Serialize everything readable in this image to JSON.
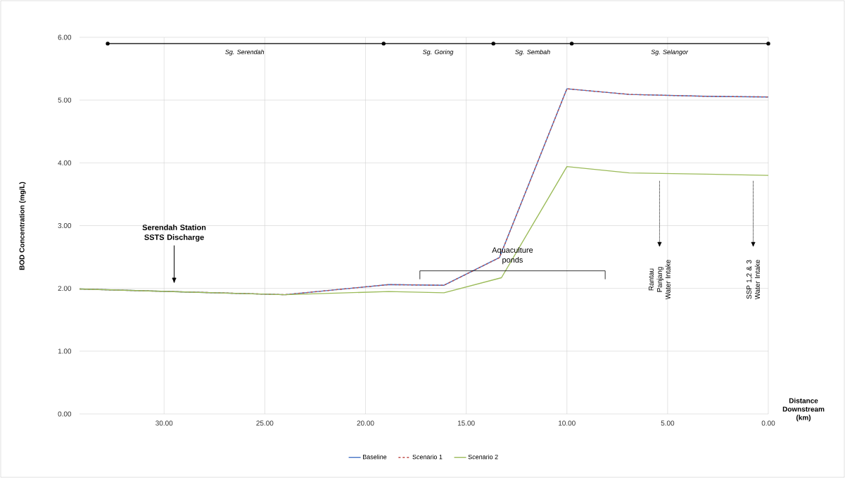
{
  "chart_data": {
    "type": "line",
    "xlabel": "Distance Downstream (km)",
    "ylabel": "BOD Concentration (mg/L)",
    "xlim": [
      34.2,
      0
    ],
    "ylim": [
      0,
      6
    ],
    "xticks": [
      {
        "value": 30,
        "label": "30.00"
      },
      {
        "value": 25,
        "label": "25.00"
      },
      {
        "value": 20,
        "label": "20.00"
      },
      {
        "value": 15,
        "label": "15.00"
      },
      {
        "value": 10,
        "label": "10.00"
      },
      {
        "value": 5,
        "label": "5.00"
      },
      {
        "value": 0,
        "label": "0.00"
      }
    ],
    "yticks": [
      {
        "value": 0,
        "label": "0.00"
      },
      {
        "value": 1,
        "label": "1.00"
      },
      {
        "value": 2,
        "label": "2.00"
      },
      {
        "value": 3,
        "label": "3.00"
      },
      {
        "value": 4,
        "label": "4.00"
      },
      {
        "value": 5,
        "label": "5.00"
      },
      {
        "value": 6,
        "label": "6.00"
      }
    ],
    "grid": true,
    "legend": "bottom",
    "series": [
      {
        "name": "Baseline",
        "color": "#4472c4",
        "line_style": "solid",
        "x": [
          34.2,
          24.0,
          18.85,
          16.1,
          13.35,
          10.0,
          6.9,
          3.1,
          0
        ],
        "values": [
          1.99,
          1.9,
          2.06,
          2.05,
          2.49,
          5.18,
          5.09,
          5.06,
          5.05
        ]
      },
      {
        "name": "Scenario 1",
        "color": "#c0504d",
        "line_style": "dashed",
        "x": [
          34.2,
          24.0,
          18.85,
          16.1,
          13.35,
          10.0,
          6.9,
          3.1,
          0
        ],
        "values": [
          1.99,
          1.9,
          2.06,
          2.05,
          2.49,
          5.18,
          5.09,
          5.06,
          5.05
        ]
      },
      {
        "name": "Scenario 2",
        "color": "#9bbb59",
        "line_style": "solid",
        "x": [
          34.2,
          24.0,
          18.85,
          16.1,
          13.25,
          10.0,
          6.9,
          3.1,
          0
        ],
        "values": [
          1.99,
          1.9,
          1.95,
          1.93,
          2.17,
          3.94,
          3.84,
          3.82,
          3.8
        ]
      },
      {
        "color": "#000000",
        "marker": "circle",
        "line_style": "solid",
        "x": [
          32.8,
          19.1,
          13.65,
          9.76,
          0
        ],
        "values": [
          5.9,
          5.9,
          5.9,
          5.9,
          5.9
        ]
      }
    ],
    "annotations": [
      {
        "text": "*Sg. Serendah*",
        "x": 26.0,
        "y": 5.9
      },
      {
        "text": "*Sg. Goring*",
        "x": 16.4,
        "y": 5.9
      },
      {
        "text": "*Sg. Sembah*",
        "x": 11.7,
        "y": 5.9
      },
      {
        "text": "*Sg. Selangor*",
        "x": 4.9,
        "y": 5.9
      },
      "**Serendah Station SSTS Discharge**",
      "Aquaculture ponds",
      "Rantau Panjang Water Intake",
      "SSP 1,2 & 3 Water Intake"
    ]
  }
}
